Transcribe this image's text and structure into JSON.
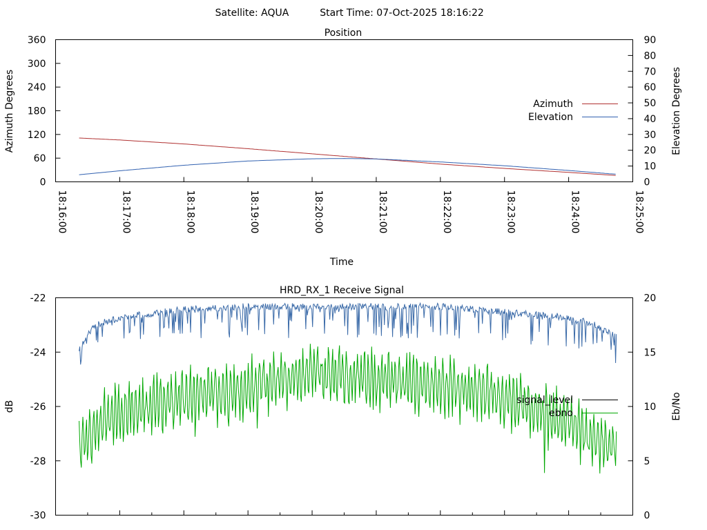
{
  "header": {
    "satellite": "Satellite: AQUA",
    "start_time": "Start Time: 07-Oct-2025 18:16:22"
  },
  "colors": {
    "azimuth": "#b03030",
    "elevation": "#3060b0",
    "signal_level": "#3a6aa8",
    "ebno": "#00a800"
  },
  "chart_data": [
    {
      "type": "line",
      "title": "Position",
      "xlabel": "Time",
      "ylabel": "Azimuth Degrees",
      "y2label": "Elevation Degrees",
      "xticks": [
        "18:16:00",
        "18:17:00",
        "18:18:00",
        "18:19:00",
        "18:20:00",
        "18:21:00",
        "18:22:00",
        "18:23:00",
        "18:24:00",
        "18:25:00"
      ],
      "xlim_seconds": [
        0,
        540
      ],
      "ylim": [
        0,
        360
      ],
      "yticks": [
        0,
        60,
        120,
        180,
        240,
        300,
        360
      ],
      "y2lim": [
        0,
        90
      ],
      "y2ticks": [
        0,
        10,
        20,
        30,
        40,
        50,
        60,
        70,
        80,
        90
      ],
      "legend_position": "right",
      "series": [
        {
          "name": "Azimuth",
          "axis": "left",
          "x_seconds": [
            22,
            60,
            120,
            180,
            240,
            300,
            360,
            420,
            480,
            525
          ],
          "values": [
            111,
            106,
            96,
            84,
            71,
            58,
            45,
            34,
            24,
            16
          ]
        },
        {
          "name": "Elevation",
          "axis": "right",
          "x_seconds": [
            22,
            60,
            120,
            180,
            240,
            270,
            300,
            360,
            420,
            480,
            525
          ],
          "values": [
            4.5,
            7,
            10.5,
            13.2,
            14.6,
            14.8,
            14.5,
            12.6,
            10.2,
            7.2,
            4.8
          ]
        }
      ]
    },
    {
      "type": "line",
      "title": "HRD_RX_1 Receive Signal",
      "xlabel": "",
      "ylabel": "dB",
      "y2label": "Eb/No",
      "xlim_seconds": [
        0,
        540
      ],
      "ylim": [
        -30,
        -22
      ],
      "yticks": [
        -30,
        -28,
        -26,
        -24,
        -22
      ],
      "y2lim": [
        0,
        20
      ],
      "y2ticks": [
        0,
        5,
        10,
        15,
        20
      ],
      "legend_position": "right",
      "series": [
        {
          "name": "signal_level",
          "axis": "left",
          "x_seconds": [
            22,
            35,
            60,
            120,
            180,
            240,
            300,
            360,
            420,
            480,
            500,
            525
          ],
          "values": [
            -23.8,
            -22.9,
            -22.6,
            -22.3,
            -22.2,
            -22.2,
            -22.2,
            -22.2,
            -22.4,
            -22.6,
            -22.8,
            -23.3
          ],
          "dip_depth_db": 1.3
        },
        {
          "name": "ebno",
          "axis": "right",
          "x_seconds": [
            22,
            30,
            60,
            120,
            180,
            240,
            300,
            360,
            420,
            480,
            500,
            525
          ],
          "values": [
            5.5,
            7.5,
            9.5,
            10.8,
            11.7,
            13.0,
            12.5,
            12.0,
            10.8,
            8.5,
            7.5,
            6.5
          ],
          "noise_amplitude": 3.0
        }
      ]
    }
  ]
}
